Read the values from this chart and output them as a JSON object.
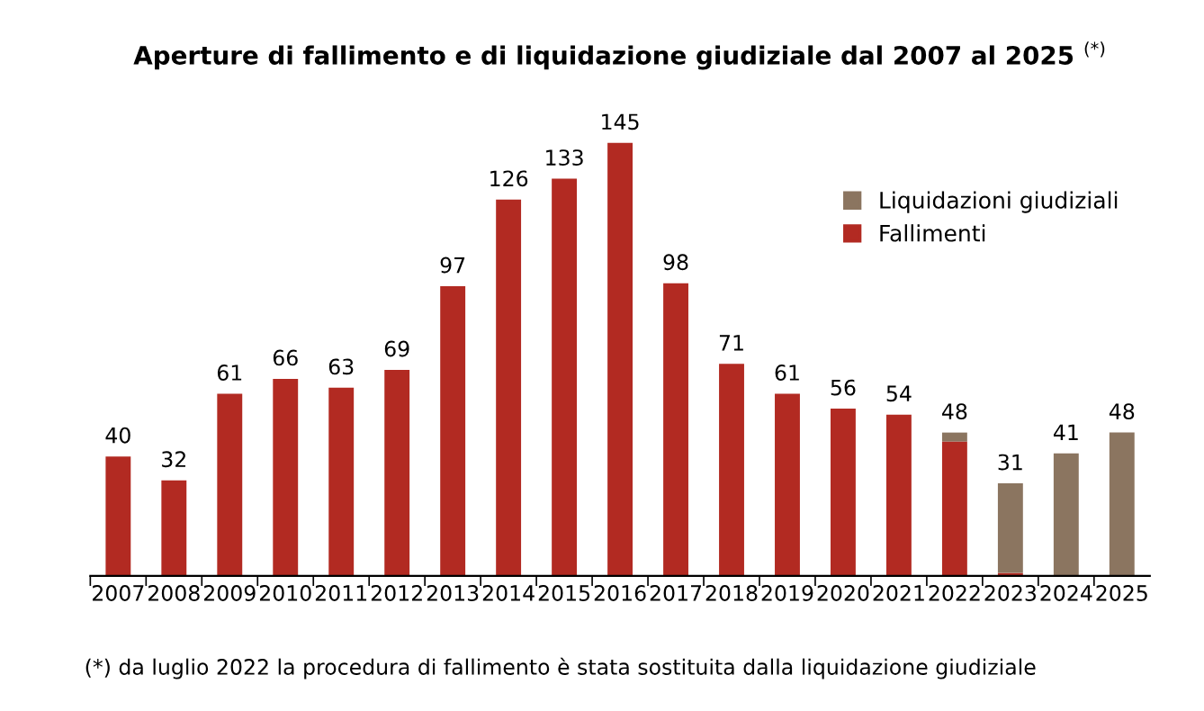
{
  "chart_data": {
    "type": "bar",
    "title": "Aperture di fallimento e di liquidazione giudiziale dal 2007 al 2025 $^{(*)}$",
    "categories": [
      "2007",
      "2008",
      "2009",
      "2010",
      "2011",
      "2012",
      "2013",
      "2014",
      "2015",
      "2016",
      "2017",
      "2018",
      "2019",
      "2020",
      "2021",
      "2022",
      "2023",
      "2024",
      "2025"
    ],
    "stacked": true,
    "series": [
      {
        "name": "Fallimenti",
        "color": "#b22a22",
        "values": [
          40,
          32,
          61,
          66,
          63,
          69,
          97,
          126,
          133,
          145,
          98,
          71,
          61,
          56,
          54,
          45,
          1,
          null,
          null
        ],
        "value_labels": [
          "40",
          "32",
          "61",
          "66",
          "63",
          "69",
          "97",
          "126",
          "133",
          "145",
          "98",
          "71",
          "61",
          "56",
          "54",
          null,
          null,
          null,
          null
        ]
      },
      {
        "name": "Liquidazioni giudiziali",
        "color": "#8b7560",
        "values": [
          null,
          null,
          null,
          null,
          null,
          null,
          null,
          null,
          null,
          null,
          null,
          null,
          null,
          null,
          null,
          3,
          30,
          41,
          48
        ],
        "value_labels": [
          null,
          null,
          null,
          null,
          null,
          null,
          null,
          null,
          null,
          null,
          null,
          null,
          null,
          null,
          null,
          null,
          null,
          "41",
          "48"
        ]
      }
    ],
    "totals": [
      null,
      null,
      null,
      null,
      null,
      null,
      null,
      null,
      null,
      null,
      null,
      null,
      null,
      null,
      null,
      "48",
      "31",
      null,
      null
    ],
    "tick_labels": "x",
    "legend": "top right",
    "annotations": [
      "(*) da luglio 2022 la procedura di fallimento è stata sostituita dalla liquidazione giudiziale"
    ]
  }
}
